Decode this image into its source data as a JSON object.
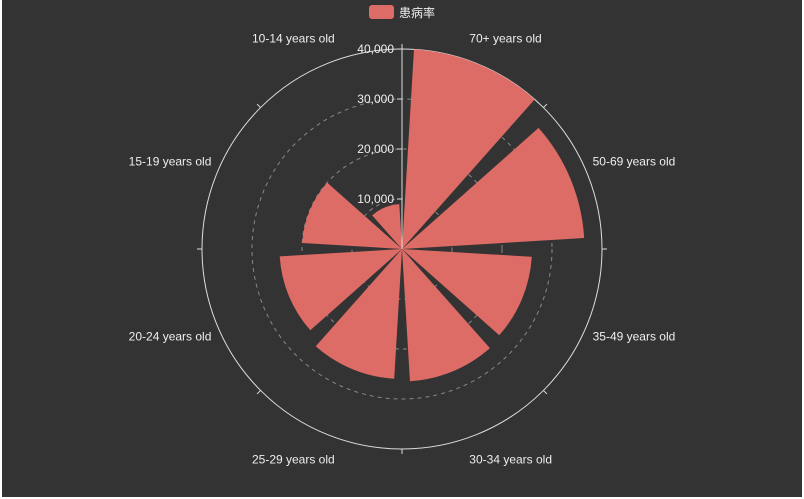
{
  "chart_data": {
    "type": "bar",
    "polar": true,
    "title": "",
    "categories": [
      "70+ years old",
      "50-69 years old",
      "35-49 years old",
      "30-34 years old",
      "25-29 years old",
      "20-24 years old",
      "15-19 years old",
      "10-14 years old"
    ],
    "series": [
      {
        "name": "患病率",
        "values": [
          40000,
          36500,
          26000,
          26500,
          26000,
          24500,
          20000,
          9000
        ]
      }
    ],
    "radial_axis": {
      "min": 0,
      "max": 40000,
      "ticks": [
        "10,000",
        "20,000",
        "30,000",
        "40,000"
      ],
      "tick_values": [
        10000,
        20000,
        30000,
        40000
      ]
    },
    "grid": true,
    "legend": "top-center",
    "colors": {
      "series": "#dd6b66",
      "background": "#333333",
      "axis": "#dddddd",
      "text": "#eeeeee"
    }
  }
}
